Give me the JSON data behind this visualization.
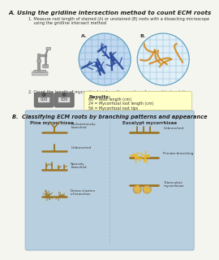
{
  "title": "A. Using the gridline intersection method to count ECM roots",
  "step1_a": "1. Measure root length of stained (A) or unstained (B) roots with a dissecting microscope",
  "step1_b": "    using the gridline intersect method",
  "step2": "2. Count the length of mycorrhizal roots or the number of mycorrhizal root tips",
  "results_title": "Results:",
  "results_lines": [
    "60 = Root length (cm)",
    "24 = Mycorrhizal root length (cm)",
    "56 = Mycorrhizal root tips"
  ],
  "circle_a_label": "A.",
  "circle_b_label": "B.",
  "section_b_title": "B.  Classifying ECM roots by branching patterns and appearance",
  "pine_label": "Pine mycorrhizae",
  "eucalypt_label": "Eucalypt mycorrhizae",
  "pine_types": [
    "Dichotomously\nbranched",
    "Unbranched",
    "Sparsely\nbranched",
    "Dense clusters\nof branches"
  ],
  "eucalypt_types": [
    "Unbranched",
    "Pinnate branching",
    "Tuberculate\nmycorrhizae"
  ],
  "bg_color": "#f5f5f0",
  "section_b_bg": "#b8cfdf",
  "circle_a_fill": "#c0d8f0",
  "circle_b_fill": "#e0eff8",
  "grid_color_a": "#7aaacc",
  "grid_color_b": "#90bbd0",
  "root_color_a": "#2a4a9a",
  "root_color_b": "#d4881a",
  "results_bg": "#ffffc8",
  "root_brown": "#9B7525",
  "root_light": "#c4a060",
  "yellow_cluster": "#e8b830"
}
